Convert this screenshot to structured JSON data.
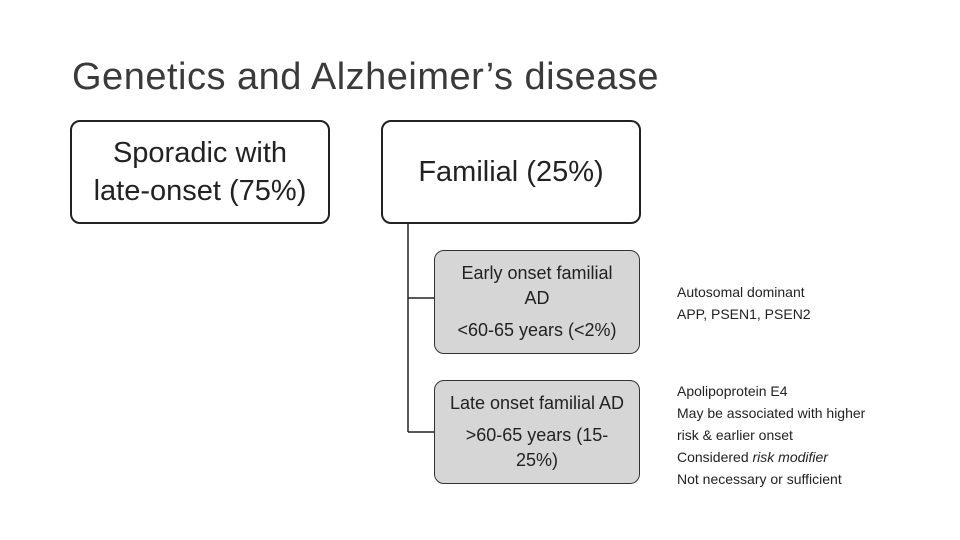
{
  "title": "Genetics and Alzheimer’s disease",
  "sporadic": {
    "line1": "Sporadic with",
    "line2": "late-onset (75%)"
  },
  "familial": {
    "label": "Familial (25%)"
  },
  "early_onset": {
    "line1": "Early onset familial",
    "line1b": "AD",
    "line2": "<60-65 years (<2%)"
  },
  "late_onset": {
    "line1": "Late onset familial AD",
    "line2a": ">60-65 years (15-",
    "line2b": "25%)"
  },
  "note_early": {
    "line1": "Autosomal dominant",
    "line2": "APP, PSEN1, PSEN2"
  },
  "note_late": {
    "line1": "Apolipoprotein E4",
    "line2": "May be associated with higher",
    "line3": "risk & earlier onset",
    "line4_prefix": "Considered ",
    "line4_italic": "risk modifier",
    "line5": "Not necessary or sufficient"
  },
  "colors": {
    "box_fill": "#ffffff",
    "child_fill": "#d6d6d6",
    "border": "#222222"
  }
}
